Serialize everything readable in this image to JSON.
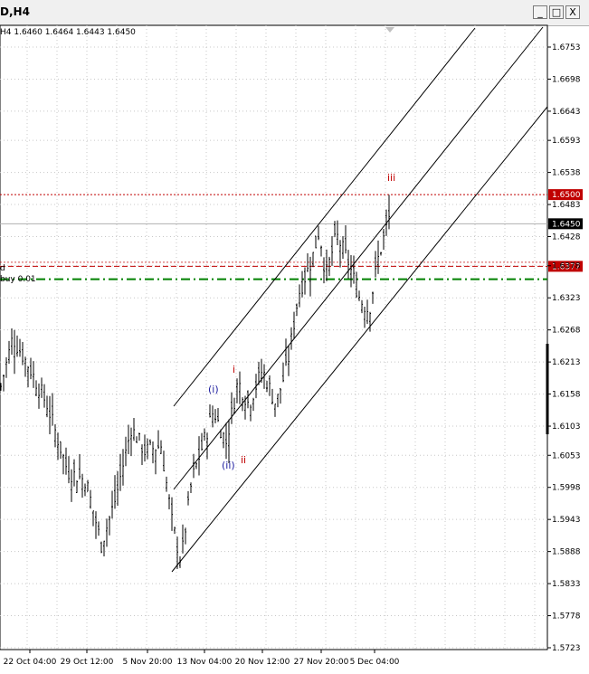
{
  "window": {
    "title": "D,H4",
    "buttons": {
      "minimize": "_",
      "restore": "□",
      "close": "X"
    }
  },
  "ohlc_text": "H4  1.6460 1.6464 1.6443 1.6450",
  "chart_data": {
    "type": "ohlc",
    "timeframe": "H4",
    "y_axis_ticks": [
      "1.6753",
      "1.6698",
      "1.6643",
      "1.6593",
      "1.6538",
      "1.6483",
      "1.6428",
      "1.6378",
      "1.6323",
      "1.6268",
      "1.6213",
      "1.6158",
      "1.6103",
      "1.6053",
      "1.5998",
      "1.5943",
      "1.5888",
      "1.5833",
      "1.5778",
      "1.5723"
    ],
    "x_axis_ticks": [
      "22 Oct 04:00",
      "29 Oct 12:00",
      "5 Nov 20:00",
      "13 Nov 04:00",
      "20 Nov 12:00",
      "27 Nov 20:00",
      "5 Dec 04:00"
    ],
    "ylim": [
      1.5723,
      1.6795
    ],
    "current_price": "1.6450",
    "levels": [
      {
        "price": 1.65,
        "label": "1.6500",
        "style": "dotted",
        "color": "#c00000"
      },
      {
        "price": 1.6377,
        "label": "1.6377",
        "style": "dashed",
        "color": "#c00000"
      },
      {
        "price": 1.6355,
        "label": "",
        "style": "dash-dot",
        "color": "#008000"
      }
    ],
    "order_labels": [
      "d",
      "buy 0.01"
    ],
    "wave_labels": [
      {
        "text": "(i)",
        "color": "#2020a0"
      },
      {
        "text": "(ii)",
        "color": "#2020a0"
      },
      {
        "text": "i",
        "color": "#c00000"
      },
      {
        "text": "ii",
        "color": "#c00000"
      },
      {
        "text": "iii",
        "color": "#c00000"
      }
    ],
    "channel": "rising parallel channel with midline",
    "grid": true
  },
  "colors": {
    "grid": "#c8c8c8",
    "bars": "#000000",
    "level_red": "#c00000",
    "level_green": "#008000",
    "price_tag_bg": "#c00000",
    "current_tag_bg": "#000000"
  }
}
